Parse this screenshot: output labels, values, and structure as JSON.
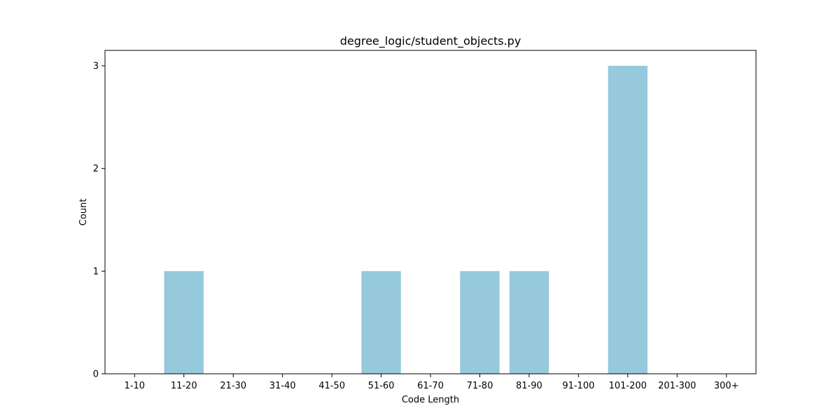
{
  "chart_data": {
    "type": "bar",
    "title": "degree_logic/student_objects.py",
    "xlabel": "Code Length",
    "ylabel": "Count",
    "categories": [
      "1-10",
      "11-20",
      "21-30",
      "31-40",
      "41-50",
      "51-60",
      "61-70",
      "71-80",
      "81-90",
      "91-100",
      "101-200",
      "201-300",
      "300+"
    ],
    "values": [
      0,
      1,
      0,
      0,
      0,
      1,
      0,
      1,
      1,
      0,
      3,
      0,
      0
    ],
    "ylim": [
      0,
      3.15
    ],
    "yticks": [
      0,
      1,
      2,
      3
    ],
    "grid": false,
    "legend": "none",
    "bar_color": "#96c9dc"
  }
}
